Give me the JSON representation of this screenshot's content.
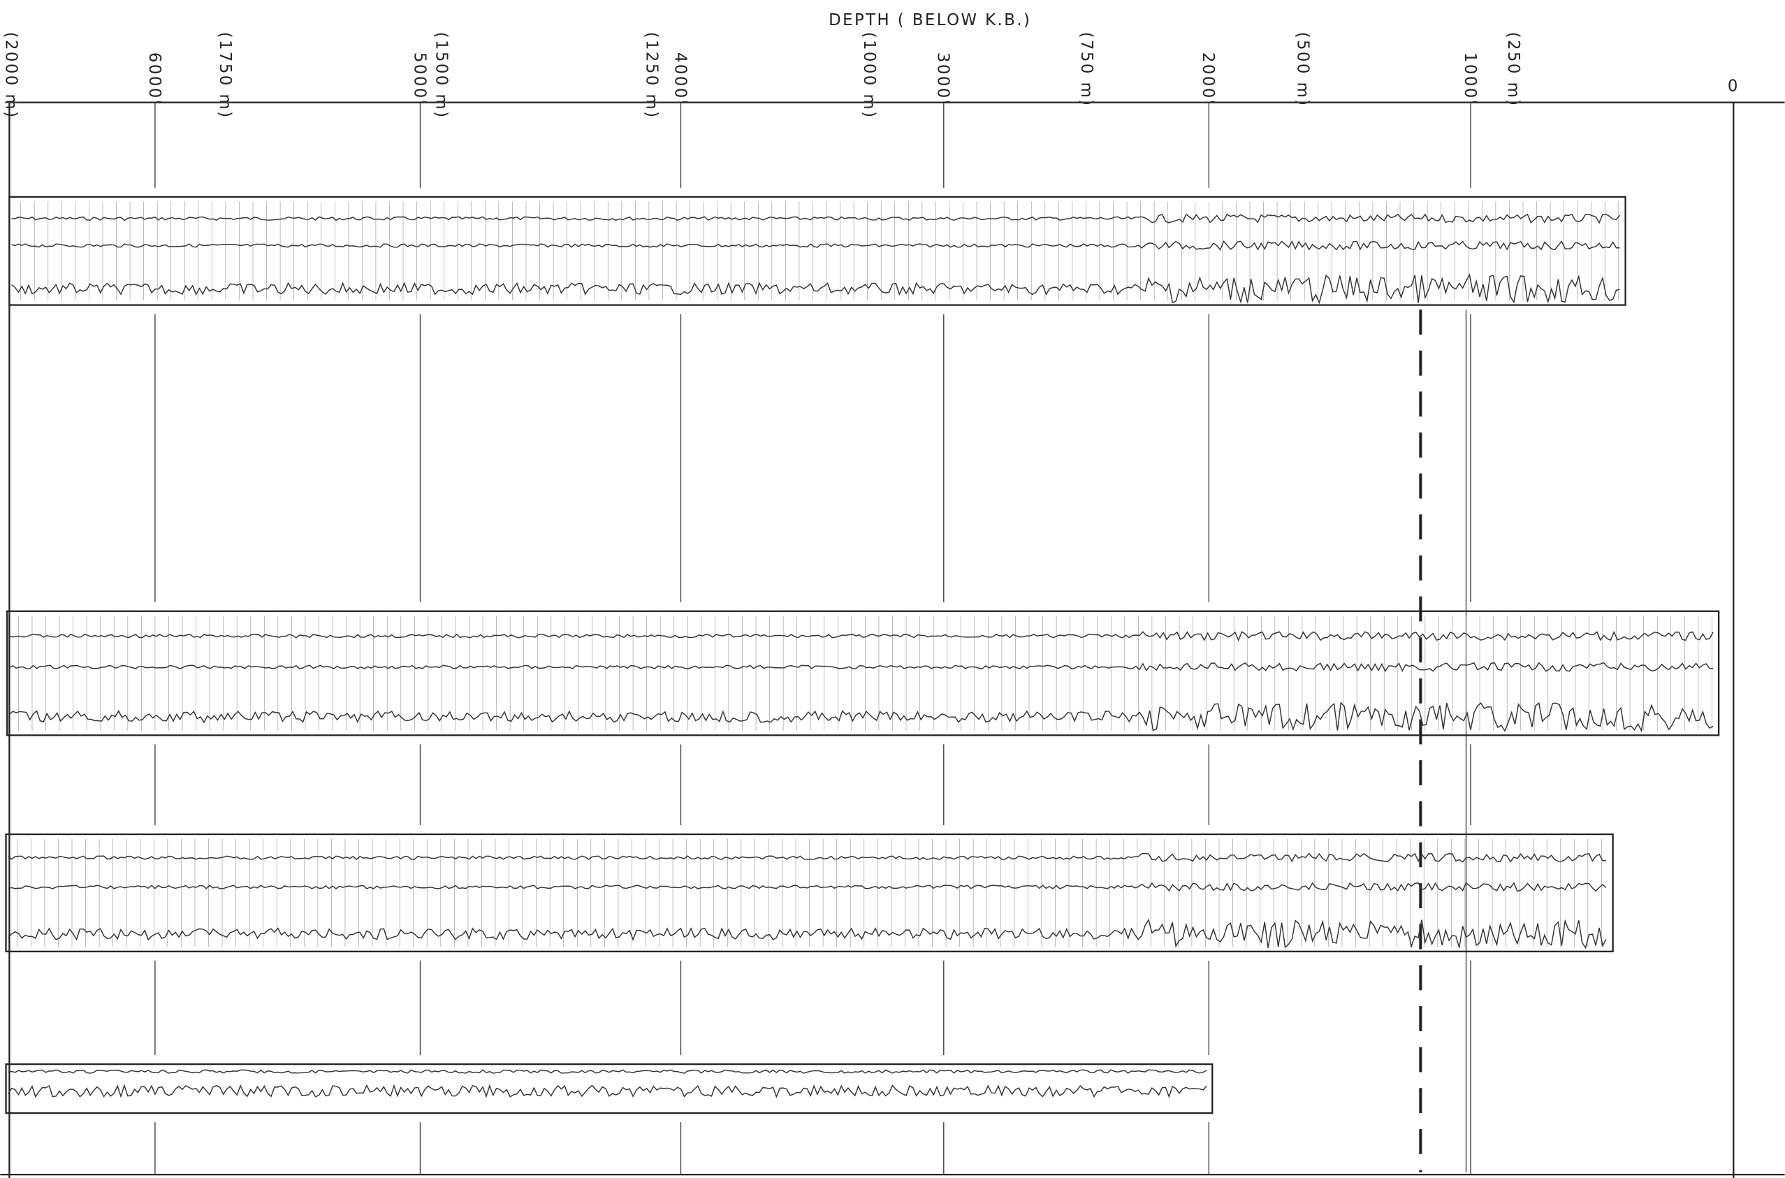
{
  "header": {
    "title": "DEPTH ( BELOW K.B.)"
  },
  "feet_labels": [
    "6000'",
    "5000'",
    "4000'",
    "3000'",
    "2000'",
    "1000'",
    "0"
  ],
  "meter_labels": [
    "(2000 m)",
    "(1750 m)",
    "(1500 m)",
    "(1250 m)",
    "(1000 m)",
    "(750 m)",
    "(500 m)",
    "(250 m)"
  ]
}
